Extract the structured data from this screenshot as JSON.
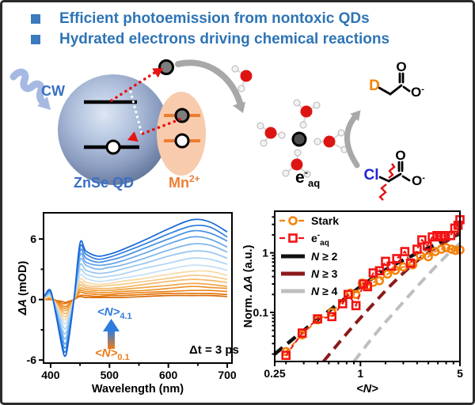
{
  "header": {
    "bullets": [
      {
        "text": "Efficient photoemission from nontoxic QDs"
      },
      {
        "text": "Hydrated electrons driving chemical reactions"
      }
    ],
    "accent_color": "#2e74b5"
  },
  "diagram": {
    "cw_label": "CW",
    "qd_label": "ZnSe QD",
    "mn_main": "Mn",
    "mn_sup": "2+",
    "eaq_main": "e",
    "eaq_sup": "-",
    "eaq_sub": "aq",
    "d_atom": "D",
    "cl_atom": "Cl",
    "o_carbonyl_top": "O",
    "o_minus_top": "O",
    "o_minus_top_sup": "-",
    "o_carbonyl_bottom": "O",
    "o_minus_bottom": "O",
    "o_minus_bottom_sup": "-",
    "colors": {
      "qd_blue": "#3a6fc4",
      "mn_orange": "#ed7d31",
      "d_orange": "#f58300",
      "cl_blue": "#2222dd",
      "red": "#e91212",
      "gray_arrow": "#a8a8a8"
    }
  },
  "chart_data": [
    {
      "type": "line",
      "panel": "bottom-left",
      "xlabel_parts": [
        [
          "Wavelength (nm)",
          false
        ]
      ],
      "ylabel_parts": [
        [
          "ΔA",
          true
        ],
        [
          " (mOD)",
          false
        ]
      ],
      "xlim": [
        388,
        708
      ],
      "ylim": [
        -6.3,
        8.6
      ],
      "x_major": [
        {
          "v": 400,
          "label": "400"
        },
        {
          "v": 500,
          "label": "500"
        },
        {
          "v": 600,
          "label": "600"
        },
        {
          "v": 700,
          "label": "700"
        }
      ],
      "x_minor": [
        450,
        550,
        650
      ],
      "y_major": [
        {
          "v": 6,
          "label": "6"
        },
        {
          "v": 0,
          "label": "0"
        },
        {
          "v": -6,
          "label": "-6"
        }
      ],
      "y_minor": [
        3,
        -3
      ],
      "annotations": {
        "series_top": {
          "main": "<N>",
          "sub": "4.1",
          "color": "#2f7ce0"
        },
        "series_bottom": {
          "main": "<N>",
          "sub": "0.1",
          "color": "#ed7d1a"
        },
        "delay": "Δt = 3 ps"
      },
      "wavelengths": [
        390,
        400,
        410,
        420,
        425,
        430,
        440,
        450,
        460,
        480,
        500,
        520,
        560,
        600,
        640,
        670,
        700
      ],
      "curves": [
        {
          "N": 4.1,
          "color": "#1565d8",
          "values": [
            0.4,
            0.9,
            -1.8,
            -4.9,
            -5.6,
            -4.3,
            0.2,
            5.6,
            4.8,
            4.3,
            4.5,
            4.9,
            5.9,
            7.0,
            7.9,
            7.7,
            6.7
          ]
        },
        {
          "N": 3.7,
          "color": "#2e7ce0",
          "values": [
            0.4,
            0.8,
            -1.7,
            -4.6,
            -5.2,
            -4.0,
            0.2,
            5.2,
            4.5,
            4.0,
            4.2,
            4.6,
            5.5,
            6.5,
            7.3,
            7.2,
            6.2
          ]
        },
        {
          "N": 3.3,
          "color": "#4890e5",
          "values": [
            0.3,
            0.8,
            -1.5,
            -4.2,
            -4.8,
            -3.7,
            0.2,
            4.8,
            4.1,
            3.7,
            3.9,
            4.2,
            5.1,
            6.0,
            6.8,
            6.6,
            5.8
          ]
        },
        {
          "N": 3.0,
          "color": "#62a3e9",
          "values": [
            0.3,
            0.7,
            -1.4,
            -3.8,
            -4.4,
            -3.4,
            0.2,
            4.4,
            3.7,
            3.4,
            3.5,
            3.8,
            4.6,
            5.5,
            6.2,
            6.0,
            5.2
          ]
        },
        {
          "N": 2.7,
          "color": "#7cb5ed",
          "values": [
            0.3,
            0.6,
            -1.3,
            -3.4,
            -3.9,
            -3.0,
            0.1,
            3.9,
            3.4,
            3.0,
            3.2,
            3.4,
            4.1,
            4.9,
            5.5,
            5.4,
            4.7
          ]
        },
        {
          "N": 2.4,
          "color": "#96c5f0",
          "values": [
            0.2,
            0.5,
            -1.1,
            -3.0,
            -3.4,
            -2.6,
            0.1,
            3.4,
            2.9,
            2.6,
            2.7,
            3.0,
            3.6,
            4.3,
            4.8,
            4.7,
            4.1
          ]
        },
        {
          "N": 2.1,
          "color": "#aed3f3",
          "values": [
            0.2,
            0.5,
            -0.9,
            -2.5,
            -2.9,
            -2.2,
            0.1,
            2.9,
            2.5,
            2.2,
            2.3,
            2.5,
            3.1,
            3.6,
            4.1,
            4.0,
            3.5
          ]
        },
        {
          "N": 1.8,
          "color": "#c4def6",
          "values": [
            0.2,
            0.4,
            -0.8,
            -2.1,
            -2.4,
            -1.8,
            0.1,
            2.4,
            2.1,
            1.8,
            1.9,
            2.1,
            2.5,
            3.0,
            3.4,
            3.3,
            2.9
          ]
        },
        {
          "N": 1.5,
          "color": "#f8d9a6",
          "values": [
            0.1,
            0.3,
            -0.6,
            -1.8,
            -2.0,
            -1.5,
            0.1,
            2.0,
            1.7,
            1.5,
            1.6,
            1.8,
            2.1,
            2.5,
            2.8,
            2.8,
            2.4
          ]
        },
        {
          "N": 1.3,
          "color": "#f6c987",
          "values": [
            0.1,
            0.3,
            -0.5,
            -1.5,
            -1.7,
            -1.3,
            0.1,
            1.7,
            1.4,
            1.3,
            1.4,
            1.5,
            1.8,
            2.1,
            2.4,
            2.3,
            2.0
          ]
        },
        {
          "N": 1.1,
          "color": "#f4b867",
          "values": [
            0.1,
            0.2,
            -0.5,
            -1.2,
            -1.4,
            -1.1,
            0.1,
            1.4,
            1.2,
            1.1,
            1.1,
            1.2,
            1.5,
            1.8,
            2.0,
            1.9,
            1.7
          ]
        },
        {
          "N": 0.9,
          "color": "#f1a64a",
          "values": [
            0.1,
            0.2,
            -0.4,
            -1.0,
            -1.1,
            -0.9,
            0.0,
            1.1,
            1.0,
            0.9,
            0.9,
            1.0,
            1.2,
            1.4,
            1.6,
            1.5,
            1.3
          ]
        },
        {
          "N": 0.7,
          "color": "#ee9530",
          "values": [
            0.1,
            0.1,
            -0.3,
            -0.8,
            -0.9,
            -0.7,
            0.0,
            0.9,
            0.8,
            0.7,
            0.7,
            0.8,
            0.9,
            1.1,
            1.3,
            1.2,
            1.1
          ]
        },
        {
          "N": 0.5,
          "color": "#ea851c",
          "values": [
            0.0,
            0.1,
            -0.2,
            -0.6,
            -0.7,
            -0.5,
            0.0,
            0.7,
            0.6,
            0.5,
            0.5,
            0.6,
            0.7,
            0.8,
            0.9,
            0.9,
            0.8
          ]
        },
        {
          "N": 0.3,
          "color": "#e3760e",
          "values": [
            0.0,
            0.1,
            -0.1,
            -0.4,
            -0.4,
            -0.3,
            0.0,
            0.4,
            0.4,
            0.3,
            0.4,
            0.4,
            0.5,
            0.6,
            0.6,
            0.6,
            0.5
          ]
        },
        {
          "N": 0.1,
          "color": "#d96a06",
          "values": [
            0.0,
            0.0,
            -0.1,
            -0.2,
            -0.3,
            -0.2,
            0.0,
            0.3,
            0.2,
            0.2,
            0.2,
            0.2,
            0.3,
            0.4,
            0.4,
            0.4,
            0.3
          ]
        }
      ]
    },
    {
      "type": "scatter",
      "panel": "bottom-right",
      "xscale": "log",
      "yscale": "log",
      "xlabel_parts": [
        [
          "<N>",
          true
        ]
      ],
      "ylabel_parts": [
        [
          "Norm. ",
          false
        ],
        [
          "ΔA",
          true
        ],
        [
          " (a.u.)",
          false
        ]
      ],
      "xlim": [
        0.25,
        5
      ],
      "ylim": [
        0.015,
        5
      ],
      "x_major": [
        {
          "v": 0.25,
          "label": "0.25"
        },
        {
          "v": 1,
          "label": "1"
        },
        {
          "v": 5,
          "label": "5"
        }
      ],
      "x_minor": [
        0.3,
        0.4,
        0.5,
        0.6,
        0.7,
        0.8,
        0.9,
        1.5,
        2,
        2.5,
        3,
        3.5,
        4,
        4.5
      ],
      "y_major": [
        {
          "v": 1,
          "label": "1"
        },
        {
          "v": 0.1,
          "label": "0.1"
        }
      ],
      "y_minor": [
        0.02,
        0.03,
        0.04,
        0.05,
        0.06,
        0.07,
        0.08,
        0.09,
        0.2,
        0.3,
        0.4,
        0.5,
        0.6,
        0.7,
        0.8,
        0.9,
        2,
        3,
        4
      ],
      "series": [
        {
          "name": "Stark",
          "marker": "circle",
          "color": "#f5820d",
          "x": [
            0.3,
            0.39,
            0.5,
            0.63,
            0.85,
            0.93,
            1.03,
            1.12,
            1.23,
            1.36,
            1.55,
            1.76,
            2.0,
            2.33,
            2.64,
            3.0,
            3.35,
            3.7,
            4.0,
            4.35,
            4.65,
            5.0
          ],
          "y": [
            0.022,
            0.042,
            0.075,
            0.1,
            0.21,
            0.2,
            0.31,
            0.28,
            0.32,
            0.34,
            0.44,
            0.51,
            0.58,
            0.63,
            0.9,
            0.86,
            1.05,
            1.15,
            1.22,
            1.15,
            1.1,
            1.12
          ]
        },
        {
          "name": "e_aq",
          "label_main": "e",
          "label_sup": "-",
          "label_sub": "aq",
          "marker": "square",
          "color": "#f21313",
          "x": [
            0.3,
            0.39,
            0.5,
            0.63,
            0.75,
            0.82,
            0.93,
            1.05,
            1.12,
            1.23,
            1.36,
            1.5,
            1.65,
            1.8,
            2.05,
            2.25,
            2.5,
            2.7,
            2.95,
            3.2,
            3.45,
            3.7,
            3.95,
            4.3,
            4.6,
            4.85,
            5.0
          ],
          "y": [
            0.019,
            0.045,
            0.078,
            0.085,
            0.14,
            0.2,
            0.13,
            0.3,
            0.27,
            0.46,
            0.5,
            0.72,
            0.6,
            0.8,
            1.05,
            0.67,
            1.15,
            1.65,
            1.3,
            1.85,
            1.95,
            1.85,
            1.95,
            1.95,
            2.6,
            2.9,
            3.6
          ]
        }
      ],
      "ref_lines": [
        {
          "label_parts": [
            [
              "N",
              true
            ],
            [
              " ≥ 2",
              false
            ]
          ],
          "color": "#111111",
          "width": 4.5,
          "points": [
            [
              0.25,
              0.02
            ],
            [
              0.4,
              0.05
            ],
            [
              0.7,
              0.14
            ],
            [
              1,
              0.27
            ],
            [
              1.5,
              0.52
            ],
            [
              2.2,
              0.85
            ],
            [
              3.2,
              1.3
            ],
            [
              5,
              2.1
            ]
          ]
        },
        {
          "label_parts": [
            [
              "N",
              true
            ],
            [
              " ≥ 3",
              false
            ]
          ],
          "color": "#8b1a1a",
          "width": 4,
          "points": [
            [
              0.55,
              0.015
            ],
            [
              0.8,
              0.044
            ],
            [
              1.2,
              0.13
            ],
            [
              1.8,
              0.36
            ],
            [
              2.7,
              0.85
            ],
            [
              4,
              1.55
            ],
            [
              5,
              2.2
            ]
          ]
        },
        {
          "label_parts": [
            [
              "N",
              true
            ],
            [
              " ≥ 4",
              false
            ]
          ],
          "color": "#bfbfbf",
          "width": 4,
          "points": [
            [
              0.9,
              0.015
            ],
            [
              1.3,
              0.046
            ],
            [
              1.9,
              0.13
            ],
            [
              2.9,
              0.4
            ],
            [
              4.2,
              1.0
            ],
            [
              5,
              1.45
            ]
          ]
        }
      ]
    }
  ]
}
